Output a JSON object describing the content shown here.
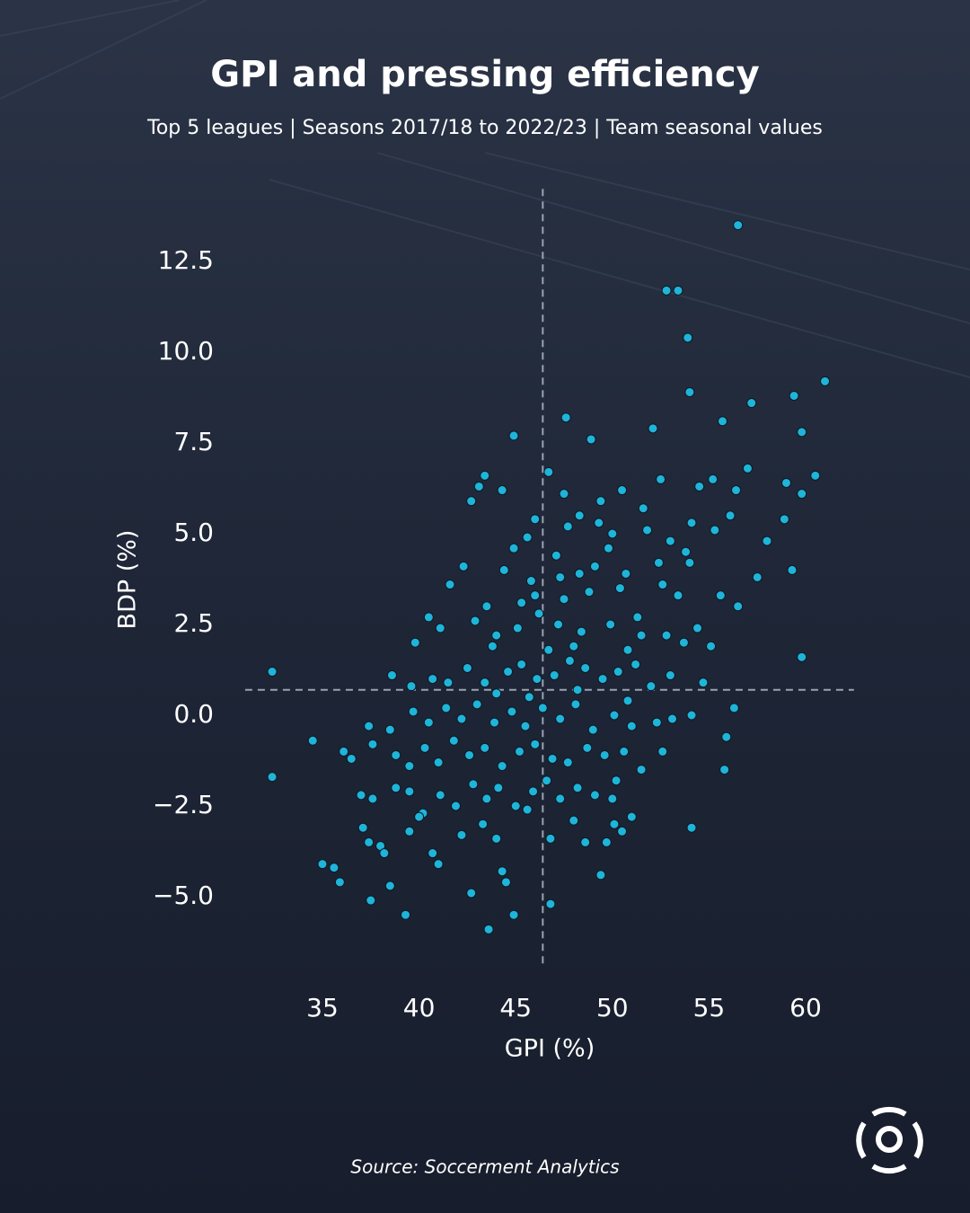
{
  "chart_data": {
    "type": "scatter",
    "title": "GPI and pressing efficiency",
    "subtitle": "Top 5 leagues | Seasons 2017/18 to 2022/23 | Team seasonal values",
    "x_label": "GPI (%)",
    "y_label": "BDP (%)",
    "source": "Source: Soccerment Analytics",
    "color": "#1fb4d9",
    "xlim": [
      31,
      62.5
    ],
    "ylim": [
      -6.9,
      14.5
    ],
    "xticks": [
      35,
      40,
      45,
      50,
      55,
      60
    ],
    "yticks": [
      {
        "value": -5,
        "label": "−5.0"
      },
      {
        "value": -2.5,
        "label": "−2.5"
      },
      {
        "value": 0,
        "label": "0.0"
      },
      2.5,
      {
        "value": 5,
        "label": "5.0"
      },
      7.5,
      {
        "value": 10,
        "label": "10.0"
      },
      12.5
    ],
    "reference_lines": {
      "x": 46.4,
      "y": 0.7
    },
    "x": [
      56.5,
      52.8,
      53.4,
      53.9,
      61.0,
      54.0,
      59.4,
      57.2,
      55.7,
      47.6,
      59.8,
      44.9,
      48.9,
      52.1,
      32.4,
      32.4,
      34.5,
      35.0,
      35.9,
      37.5,
      39.3,
      43.6,
      44.9,
      46.8,
      42.7,
      54.1,
      59.8,
      59.3,
      60.5,
      59.8,
      58.0,
      57.5,
      58.9,
      59.0,
      55.8,
      55.9,
      56.3,
      49.4,
      43.1,
      43.4,
      44.3,
      42.7,
      47.5,
      49.4,
      50.5,
      52.5,
      54.5,
      55.2,
      56.4,
      57.0,
      46.7,
      51.6,
      45.6,
      46.0,
      47.7,
      48.3,
      49.3,
      50.0,
      51.8,
      53.0,
      54.1,
      55.3,
      56.1,
      44.9,
      47.1,
      49.8,
      53.8,
      52.4,
      42.3,
      44.4,
      45.8,
      47.3,
      48.3,
      49.1,
      50.7,
      52.6,
      54.0,
      55.6,
      56.5,
      41.6,
      43.5,
      45.3,
      46.0,
      47.5,
      48.8,
      50.4,
      51.3,
      53.4,
      40.5,
      41.1,
      42.9,
      44.0,
      45.1,
      46.2,
      47.2,
      48.4,
      49.9,
      51.5,
      52.8,
      54.4,
      55.1,
      39.8,
      43.8,
      46.7,
      48.0,
      50.8,
      53.7,
      38.6,
      39.6,
      40.7,
      41.5,
      42.5,
      43.4,
      44.6,
      45.3,
      46.1,
      47.0,
      47.8,
      48.6,
      49.5,
      50.3,
      51.2,
      52.0,
      53.0,
      54.7,
      44.0,
      45.7,
      48.2,
      50.8,
      37.4,
      38.5,
      39.7,
      40.5,
      41.4,
      42.2,
      43.0,
      43.9,
      44.8,
      45.5,
      46.4,
      47.3,
      48.1,
      49.0,
      50.1,
      51.0,
      52.3,
      53.1,
      54.1,
      36.1,
      36.5,
      37.6,
      38.8,
      39.5,
      40.3,
      41.0,
      41.8,
      42.6,
      43.4,
      44.3,
      45.2,
      46.0,
      46.9,
      47.7,
      48.7,
      49.6,
      50.6,
      51.5,
      52.6,
      50.2,
      37.0,
      37.6,
      38.8,
      39.5,
      40.2,
      41.1,
      41.9,
      42.8,
      43.5,
      44.1,
      45.0,
      45.9,
      46.6,
      47.3,
      48.2,
      49.1,
      50.0,
      40.0,
      37.1,
      37.4,
      38.0,
      38.2,
      39.5,
      40.7,
      41.0,
      42.2,
      43.3,
      44.0,
      45.6,
      46.8,
      48.0,
      48.6,
      49.7,
      50.1,
      50.5,
      51.0,
      44.3,
      44.5,
      38.5,
      35.6
    ],
    "y": [
      13.5,
      11.7,
      11.7,
      10.4,
      9.2,
      8.9,
      8.8,
      8.6,
      8.1,
      8.2,
      7.8,
      7.7,
      7.6,
      7.9,
      1.2,
      -1.7,
      -0.7,
      -4.1,
      -4.6,
      -5.1,
      -5.5,
      -5.9,
      -5.5,
      -5.2,
      -4.9,
      -3.1,
      1.6,
      4.0,
      6.6,
      6.1,
      4.8,
      3.8,
      5.4,
      6.4,
      -1.5,
      -0.6,
      0.2,
      -4.4,
      6.3,
      6.6,
      6.2,
      5.9,
      6.1,
      5.9,
      6.2,
      6.5,
      6.3,
      6.5,
      6.2,
      6.8,
      6.7,
      5.7,
      4.9,
      5.4,
      5.2,
      5.5,
      5.3,
      5.0,
      5.1,
      4.8,
      5.3,
      5.1,
      5.5,
      4.6,
      4.4,
      4.6,
      4.5,
      4.2,
      4.1,
      4.0,
      3.7,
      3.8,
      3.9,
      4.1,
      3.9,
      3.6,
      4.2,
      3.3,
      3.0,
      3.6,
      3.0,
      3.1,
      3.3,
      3.2,
      3.4,
      3.5,
      2.7,
      3.3,
      2.7,
      2.4,
      2.6,
      2.2,
      2.4,
      2.8,
      2.5,
      2.3,
      2.5,
      2.2,
      2.2,
      2.4,
      1.9,
      2.0,
      1.9,
      1.8,
      1.9,
      1.8,
      2.0,
      1.1,
      0.8,
      1.0,
      0.9,
      1.3,
      0.9,
      1.2,
      1.4,
      1.0,
      1.1,
      1.5,
      1.3,
      1.0,
      1.2,
      1.4,
      0.8,
      1.1,
      0.9,
      0.6,
      0.5,
      0.7,
      0.4,
      -0.3,
      -0.4,
      0.1,
      -0.2,
      0.2,
      -0.1,
      0.3,
      -0.2,
      0.1,
      -0.3,
      0.2,
      -0.1,
      0.3,
      -0.4,
      0.0,
      -0.3,
      -0.2,
      -0.1,
      0.0,
      -1.0,
      -1.2,
      -0.8,
      -1.1,
      -1.4,
      -0.9,
      -1.3,
      -0.7,
      -1.1,
      -0.9,
      -1.4,
      -1.0,
      -0.8,
      -1.2,
      -1.3,
      -0.9,
      -1.1,
      -1.0,
      -1.5,
      -1.0,
      -1.8,
      -2.2,
      -2.3,
      -2.0,
      -2.1,
      -2.7,
      -2.2,
      -2.5,
      -1.9,
      -2.3,
      -2.0,
      -2.5,
      -2.1,
      -1.8,
      -2.3,
      -2.0,
      -2.2,
      -2.3,
      -2.8,
      -3.1,
      -3.5,
      -3.6,
      -3.8,
      -3.2,
      -3.8,
      -4.1,
      -3.3,
      -3.0,
      -3.4,
      -2.6,
      -3.4,
      -2.9,
      -3.5,
      -3.5,
      -3.0,
      -3.2,
      -2.8,
      -4.3,
      -4.6,
      -4.7,
      -4.2
    ]
  }
}
